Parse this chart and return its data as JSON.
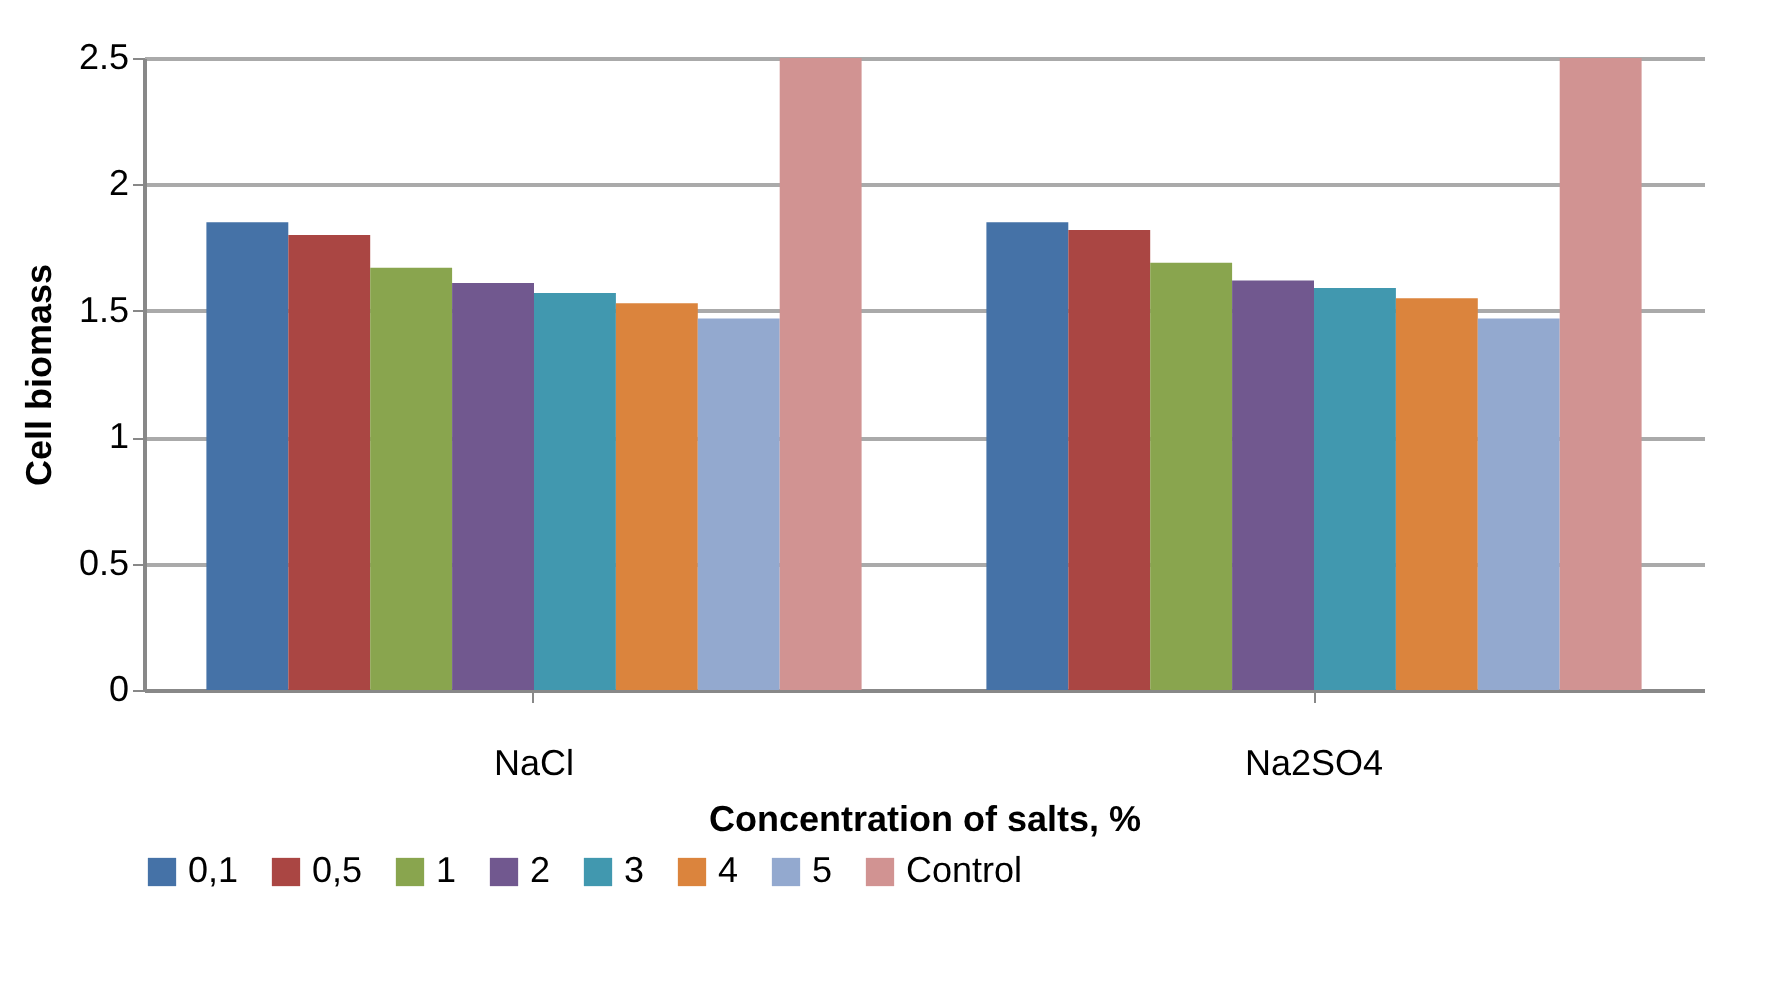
{
  "chart_data": {
    "type": "bar",
    "xlabel": "Concentration of salts, %",
    "ylabel": "Cell biomass",
    "categories": [
      "NaCl",
      "Na2SO4"
    ],
    "series": [
      {
        "name": "0,1",
        "color": "#4572a7",
        "values": [
          1.85,
          1.85
        ]
      },
      {
        "name": "0,5",
        "color": "#aa4643",
        "values": [
          1.8,
          1.82
        ]
      },
      {
        "name": "1",
        "color": "#89a54e",
        "values": [
          1.67,
          1.69
        ]
      },
      {
        "name": "2",
        "color": "#71588f",
        "values": [
          1.61,
          1.62
        ]
      },
      {
        "name": "3",
        "color": "#4198af",
        "values": [
          1.57,
          1.59
        ]
      },
      {
        "name": "4",
        "color": "#db843d",
        "values": [
          1.53,
          1.55
        ]
      },
      {
        "name": "5",
        "color": "#93a9cf",
        "values": [
          1.47,
          1.47
        ]
      },
      {
        "name": "Control",
        "color": "#d19392",
        "values": [
          2.5,
          2.5
        ]
      }
    ],
    "ylim": [
      0,
      2.5
    ],
    "yticks": [
      0,
      0.5,
      1,
      1.5,
      2,
      2.5
    ],
    "grid": "y",
    "legend": "bottom"
  }
}
